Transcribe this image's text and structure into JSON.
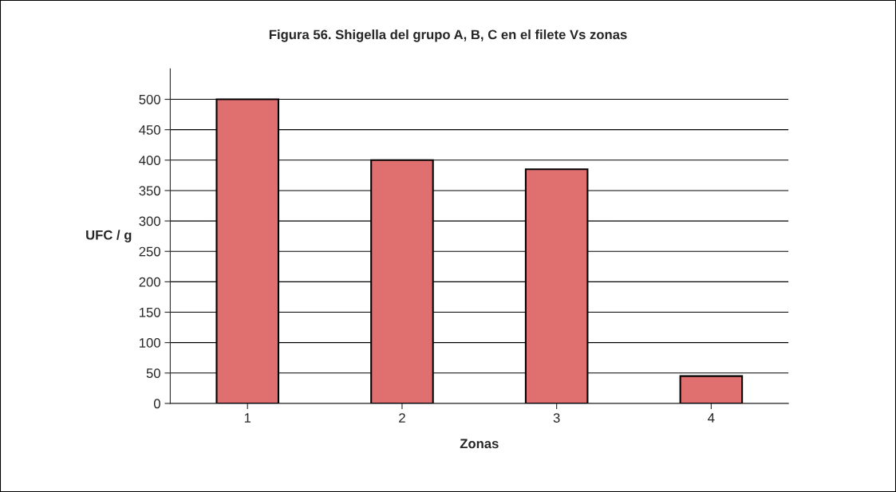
{
  "chart_data": {
    "type": "bar",
    "title": "Figura 56. Shigella del grupo A, B, C en el filete Vs zonas",
    "xlabel": "Zonas",
    "ylabel": "UFC / g",
    "categories": [
      "1",
      "2",
      "3",
      "4"
    ],
    "values": [
      500,
      400,
      385,
      45
    ],
    "color": "#e07070",
    "ylim": [
      0,
      550
    ],
    "yticks": [
      0,
      50,
      100,
      150,
      200,
      250,
      300,
      350,
      400,
      450,
      500
    ],
    "grid": "y"
  }
}
